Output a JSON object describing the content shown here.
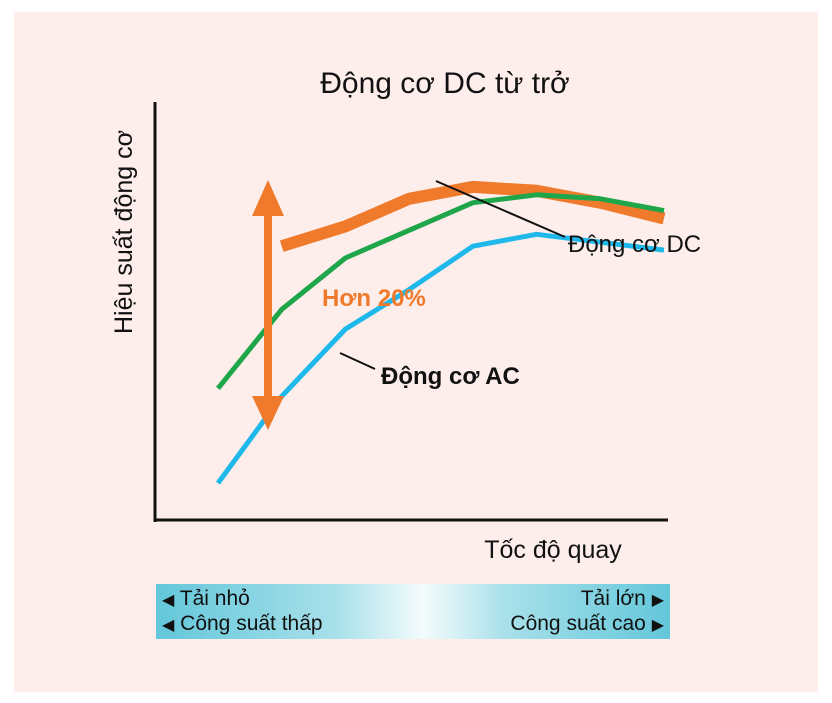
{
  "chart_data": {
    "type": "line",
    "title": "Động cơ DC từ trở",
    "ylabel": "Hiệu suất động cơ",
    "xlabel": "Tốc độ quay",
    "x_ticks": [],
    "y_ticks": [],
    "x": [
      0,
      1,
      2,
      3,
      4,
      5,
      6,
      7
    ],
    "series": [
      {
        "name": "Động cơ DC từ trở",
        "color": "#f07a2c",
        "line_width": "thick",
        "values": [
          null,
          0.63,
          0.68,
          0.75,
          0.78,
          0.77,
          0.74,
          0.7
        ]
      },
      {
        "name": "Động cơ DC",
        "color": "#1fa64a",
        "line_width": "medium",
        "values": [
          0.27,
          0.47,
          0.6,
          0.67,
          0.74,
          0.76,
          0.75,
          0.72
        ]
      },
      {
        "name": "Động cơ AC",
        "color": "#1fb8ea",
        "line_width": "medium",
        "values": [
          0.03,
          0.25,
          0.42,
          0.52,
          0.63,
          0.66,
          0.64,
          0.62
        ]
      }
    ],
    "annotations": [
      {
        "text": "Hơn 20%",
        "color": "#f07a2c",
        "type": "double-arrow"
      },
      {
        "text": "Động cơ DC",
        "target_series": "Động cơ DC"
      },
      {
        "text": "Động cơ AC",
        "target_series": "Động cơ AC"
      }
    ],
    "grid": false,
    "legend": "none"
  },
  "load_bar": {
    "left_top": "Tải nhỏ",
    "right_top": "Tải lớn",
    "left_bottom": "Công suất thấp",
    "right_bottom": "Công suất cao",
    "left_arrow": "◀",
    "right_arrow": "▶"
  }
}
